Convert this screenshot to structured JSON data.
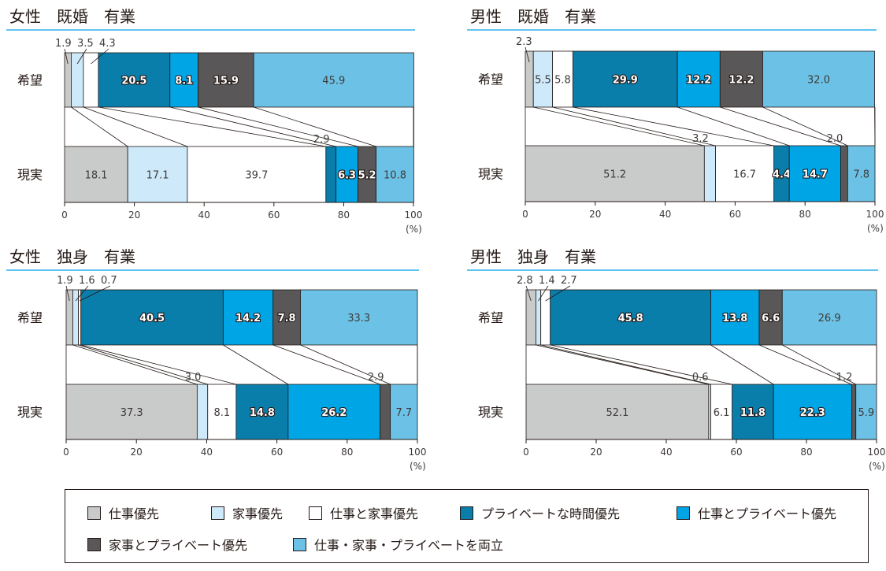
{
  "categories": [
    {
      "key": "work",
      "label": "仕事優先",
      "color": "#c9caca",
      "text": "#3e3a39",
      "outline": false
    },
    {
      "key": "home",
      "label": "家事優先",
      "color": "#cde9fa",
      "text": "#3e3a39",
      "outline": false
    },
    {
      "key": "workhome",
      "label": "仕事と家事優先",
      "color": "#ffffff",
      "text": "#3e3a39",
      "outline": false
    },
    {
      "key": "private",
      "label": "プライベートな時間優先",
      "color": "#0a7eab",
      "text": "#ffffff",
      "outline": true
    },
    {
      "key": "workprivate",
      "label": "仕事とプライベート優先",
      "color": "#00a5e6",
      "text": "#ffffff",
      "outline": true
    },
    {
      "key": "homeprivate",
      "label": "家事とプライベート優先",
      "color": "#595757",
      "text": "#ffffff",
      "outline": true
    },
    {
      "key": "all",
      "label": "仕事・家事・プライベートを両立",
      "color": "#6cc2e6",
      "text": "#3e3a39",
      "outline": false
    }
  ],
  "axis_unit": "(%)",
  "chart_data": [
    {
      "type": "bar",
      "orientation": "horizontal",
      "stacked": true,
      "title": "女性　既婚　有業",
      "categories": [
        "希望",
        "現実"
      ],
      "xlim": [
        0,
        100
      ],
      "xticks": [
        0,
        20,
        40,
        60,
        80,
        100
      ],
      "series": [
        {
          "name": "仕事優先",
          "values": [
            1.9,
            18.1
          ]
        },
        {
          "name": "家事優先",
          "values": [
            3.5,
            17.1
          ]
        },
        {
          "name": "仕事と家事優先",
          "values": [
            4.3,
            39.7
          ]
        },
        {
          "name": "プライベートな時間優先",
          "values": [
            20.5,
            2.9
          ]
        },
        {
          "name": "仕事とプライベート優先",
          "values": [
            8.1,
            6.3
          ]
        },
        {
          "name": "家事とプライベート優先",
          "values": [
            15.9,
            5.2
          ]
        },
        {
          "name": "仕事・家事・プライベートを両立",
          "values": [
            45.9,
            10.8
          ]
        }
      ]
    },
    {
      "type": "bar",
      "orientation": "horizontal",
      "stacked": true,
      "title": "男性　既婚　有業",
      "categories": [
        "希望",
        "現実"
      ],
      "xlim": [
        0,
        100
      ],
      "xticks": [
        0,
        20,
        40,
        60,
        80,
        100
      ],
      "series": [
        {
          "name": "仕事優先",
          "values": [
            2.3,
            51.2
          ]
        },
        {
          "name": "家事優先",
          "values": [
            5.5,
            3.2
          ]
        },
        {
          "name": "仕事と家事優先",
          "values": [
            5.8,
            16.7
          ]
        },
        {
          "name": "プライベートな時間優先",
          "values": [
            29.9,
            4.4
          ]
        },
        {
          "name": "仕事とプライベート優先",
          "values": [
            12.2,
            14.7
          ]
        },
        {
          "name": "家事とプライベート優先",
          "values": [
            12.2,
            2.0
          ]
        },
        {
          "name": "仕事・家事・プライベートを両立",
          "values": [
            32.0,
            7.8
          ]
        }
      ]
    },
    {
      "type": "bar",
      "orientation": "horizontal",
      "stacked": true,
      "title": "女性　独身　有業",
      "categories": [
        "希望",
        "現実"
      ],
      "xlim": [
        0,
        100
      ],
      "xticks": [
        0,
        20,
        40,
        60,
        80,
        100
      ],
      "series": [
        {
          "name": "仕事優先",
          "values": [
            1.9,
            37.3
          ]
        },
        {
          "name": "家事優先",
          "values": [
            1.6,
            3.0
          ]
        },
        {
          "name": "仕事と家事優先",
          "values": [
            0.7,
            8.1
          ]
        },
        {
          "name": "プライベートな時間優先",
          "values": [
            40.5,
            14.8
          ]
        },
        {
          "name": "仕事とプライベート優先",
          "values": [
            14.2,
            26.2
          ]
        },
        {
          "name": "家事とプライベート優先",
          "values": [
            7.8,
            2.9
          ]
        },
        {
          "name": "仕事・家事・プライベートを両立",
          "values": [
            33.3,
            7.7
          ]
        }
      ]
    },
    {
      "type": "bar",
      "orientation": "horizontal",
      "stacked": true,
      "title": "男性　独身　有業",
      "categories": [
        "希望",
        "現実"
      ],
      "xlim": [
        0,
        100
      ],
      "xticks": [
        0,
        20,
        40,
        60,
        80,
        100
      ],
      "series": [
        {
          "name": "仕事優先",
          "values": [
            2.8,
            52.1
          ]
        },
        {
          "name": "家事優先",
          "values": [
            1.4,
            0.6
          ]
        },
        {
          "name": "仕事と家事優先",
          "values": [
            2.7,
            6.1
          ]
        },
        {
          "name": "プライベートな時間優先",
          "values": [
            45.8,
            11.8
          ]
        },
        {
          "name": "仕事とプライベート優先",
          "values": [
            13.8,
            22.3
          ]
        },
        {
          "name": "家事とプライベート優先",
          "values": [
            6.6,
            1.2
          ]
        },
        {
          "name": "仕事・家事・プライベートを両立",
          "values": [
            26.9,
            5.9
          ]
        }
      ]
    }
  ]
}
